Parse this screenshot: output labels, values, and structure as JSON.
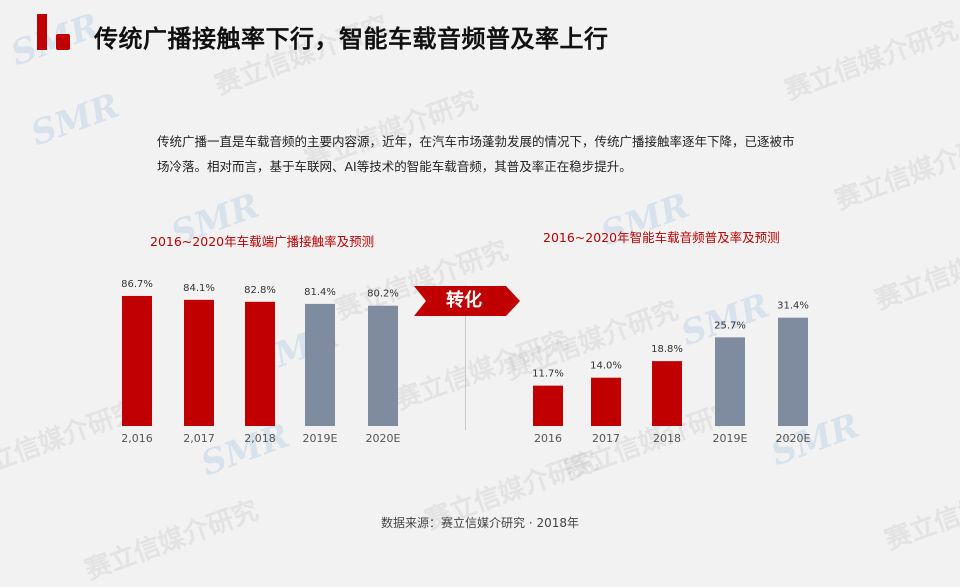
{
  "page": {
    "title": "传统广播接触率下行，智能车载音频普及率上行",
    "intro": "传统广播一直是车载音频的主要内容源，近年，在汽车市场蓬勃发展的情况下，传统广播接触率逐年下降，已逐被市场冷落。相对而言，基于车联网、AI等技术的智能车载音频，其普及率正在稳步提升。",
    "transition_label": "转化",
    "source": "数据来源：赛立信媒介研究 · 2018年",
    "watermark_text": "赛立信媒介研究",
    "watermark_logo": "SMR"
  },
  "colors": {
    "accent_red": "#c00000",
    "forecast_gray": "#7f8ca0",
    "background": "#f2f2f2"
  },
  "chart_data": [
    {
      "type": "bar",
      "title": "2016~2020年车载端广播接触率及预测",
      "categories": [
        "2,016",
        "2,017",
        "2,018",
        "2019E",
        "2020E"
      ],
      "values": [
        86.7,
        84.1,
        82.8,
        81.4,
        80.2
      ],
      "labels": [
        "86.7%",
        "84.1%",
        "82.8%",
        "81.4%",
        "80.2%"
      ],
      "forecast": [
        false,
        false,
        false,
        true,
        true
      ],
      "xlabel": "",
      "ylabel": "",
      "grid": false
    },
    {
      "type": "bar",
      "title": "2016~2020年智能车载音频普及率及预测",
      "categories": [
        "2016",
        "2017",
        "2018",
        "2019E",
        "2020E"
      ],
      "values": [
        11.7,
        14.0,
        18.8,
        25.7,
        31.4
      ],
      "labels": [
        "11.7%",
        "14.0%",
        "18.8%",
        "25.7%",
        "31.4%"
      ],
      "forecast": [
        false,
        false,
        false,
        true,
        true
      ],
      "xlabel": "",
      "ylabel": "",
      "grid": false
    }
  ]
}
